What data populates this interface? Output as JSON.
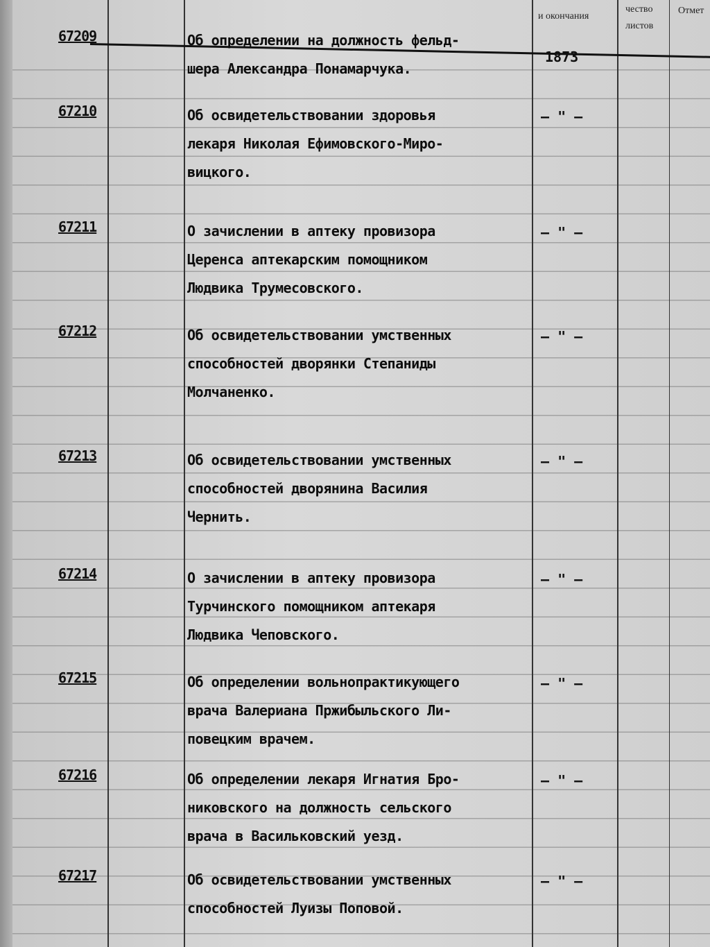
{
  "header": {
    "dates_column": "и окончания",
    "sheets_column_1": "чество",
    "sheets_column_2": "листов",
    "notes_column": "Отмет"
  },
  "entries": [
    {
      "number": "67209",
      "lines": [
        "Об определении на должность фельд-",
        "шера Александра Понамарчука."
      ],
      "date": "1873"
    },
    {
      "number": "67210",
      "lines": [
        "Об освидетельствовании здоровья",
        "лекаря Николая Ефимовского-Миро-",
        "вицкого."
      ],
      "date": "– \" –"
    },
    {
      "number": "67211",
      "lines": [
        "О зачислении в аптеку провизора",
        "Церенса аптекарским помощником",
        "Людвика Трумесовского."
      ],
      "date": "– \" –"
    },
    {
      "number": "67212",
      "lines": [
        "Об освидетельствовании умственных",
        "способностей дворянки Степаниды",
        "Молчаненко."
      ],
      "date": "– \" –"
    },
    {
      "number": "67213",
      "lines": [
        "Об освидетельствовании умственных",
        "способностей дворянина Василия",
        "Чернить."
      ],
      "date": "– \" –"
    },
    {
      "number": "67214",
      "lines": [
        "О зачислении в аптеку провизора",
        "Турчинского помощником аптекаря",
        "Людвика Чеповского."
      ],
      "date": "– \" –"
    },
    {
      "number": "67215",
      "lines": [
        "Об определении вольнопрактикующего",
        "врача Валериана Пржибыльского Ли-",
        "повецким врачем."
      ],
      "date": "– \" –"
    },
    {
      "number": "67216",
      "lines": [
        "Об определении лекаря Игнатия Бро-",
        "никовского на должность сельского",
        "врача в Васильковский уезд."
      ],
      "date": "– \" –"
    },
    {
      "number": "67217",
      "lines": [
        "Об освидетельствовании умственных",
        "способностей Луизы Поповой."
      ],
      "date": "– \" –"
    }
  ]
}
